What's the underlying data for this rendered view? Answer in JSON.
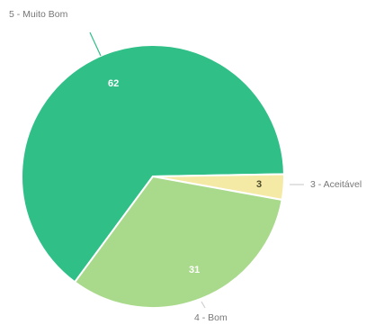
{
  "chart_data": {
    "type": "pie",
    "slices": [
      {
        "label": "5 - Muito Bom",
        "value": 62,
        "color": "#2fbf87"
      },
      {
        "label": "3 - Aceitável",
        "value": 3,
        "color": "#f5eaa5"
      },
      {
        "label": "4 - Bom",
        "value": 31,
        "color": "#a9d98a"
      }
    ],
    "title": "",
    "legend": "none",
    "data_labels": true
  }
}
